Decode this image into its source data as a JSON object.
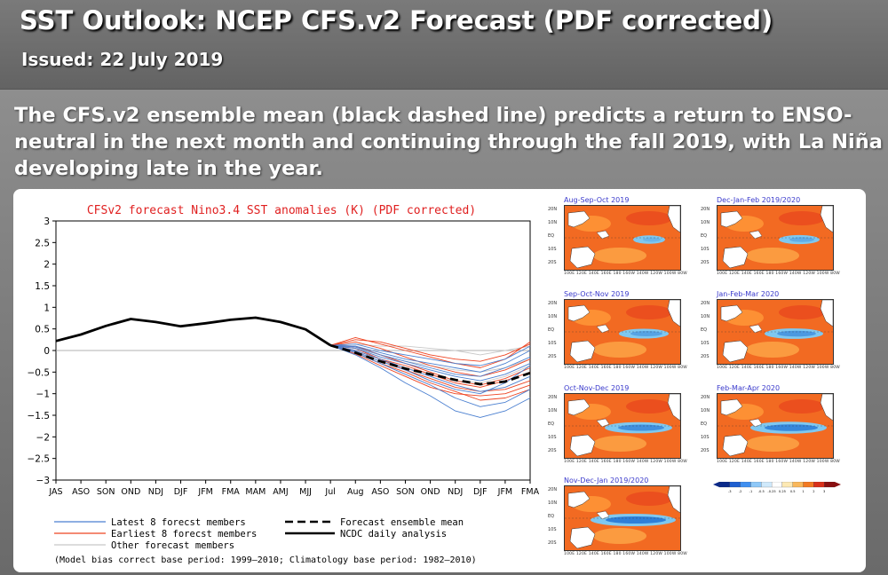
{
  "header": {
    "title": "SST Outlook: NCEP CFS.v2 Forecast (PDF corrected)",
    "issued": "Issued: 22 July 2019"
  },
  "summary": "The CFS.v2 ensemble mean (black dashed line) predicts a return to ENSO-neutral in the next month and continuing through the fall 2019, with La Niña developing late in the year.",
  "colors": {
    "chart_title": "#e02020",
    "latest_members": "#4a7fd0",
    "earliest_members": "#ee4422",
    "other_members": "#c8c8c8",
    "ensemble_mean": "#000000",
    "observed": "#000000"
  },
  "chart_data": {
    "type": "line",
    "title": "CFSv2 forecast Nino3.4 SST anomalies (K) (PDF corrected)",
    "xlabel": "",
    "ylabel": "",
    "ylim": [
      -3,
      3
    ],
    "yticks": [
      "3",
      "2.5",
      "2",
      "1.5",
      "1",
      "0.5",
      "0",
      "−0.5",
      "−1",
      "−1.5",
      "−2",
      "−2.5",
      "−3"
    ],
    "categories": [
      "JAS",
      "ASO",
      "SON",
      "OND",
      "NDJ",
      "DJF",
      "JFM",
      "FMA",
      "MAM",
      "AMJ",
      "MJJ",
      "Jul",
      "Aug",
      "ASO",
      "SON",
      "OND",
      "NDJ",
      "DJF",
      "JFM",
      "FMA"
    ],
    "series": [
      {
        "name": "NCDC daily analysis",
        "x": [
          0,
          1,
          2,
          3,
          4,
          5,
          6,
          7,
          8,
          9,
          10,
          11
        ],
        "values": [
          0.22,
          0.37,
          0.57,
          0.73,
          0.66,
          0.56,
          0.63,
          0.71,
          0.76,
          0.66,
          0.49,
          0.12
        ]
      },
      {
        "name": "Forecast ensemble mean",
        "x": [
          11,
          12,
          13,
          14,
          15,
          16,
          17,
          18,
          19
        ],
        "values": [
          0.12,
          -0.05,
          -0.25,
          -0.42,
          -0.55,
          -0.68,
          -0.78,
          -0.72,
          -0.52
        ]
      },
      {
        "name": "Latest member 1",
        "x": [
          11,
          12,
          13,
          14,
          15,
          16,
          17,
          18,
          19
        ],
        "values": [
          0.12,
          -0.1,
          -0.4,
          -0.75,
          -1.05,
          -1.4,
          -1.55,
          -1.4,
          -1.1
        ]
      },
      {
        "name": "Latest member 2",
        "x": [
          11,
          12,
          13,
          14,
          15,
          16,
          17,
          18,
          19
        ],
        "values": [
          0.12,
          -0.05,
          -0.3,
          -0.55,
          -0.8,
          -1.1,
          -1.3,
          -1.2,
          -0.9
        ]
      },
      {
        "name": "Latest member 3",
        "x": [
          11,
          12,
          13,
          14,
          15,
          16,
          17,
          18,
          19
        ],
        "values": [
          0.12,
          0.0,
          -0.2,
          -0.4,
          -0.6,
          -0.8,
          -0.95,
          -0.85,
          -0.6
        ]
      },
      {
        "name": "Latest member 4",
        "x": [
          11,
          12,
          13,
          14,
          15,
          16,
          17,
          18,
          19
        ],
        "values": [
          0.12,
          0.05,
          -0.15,
          -0.3,
          -0.45,
          -0.6,
          -0.7,
          -0.55,
          -0.3
        ]
      },
      {
        "name": "Latest member 5",
        "x": [
          11,
          12,
          13,
          14,
          15,
          16,
          17,
          18,
          19
        ],
        "values": [
          0.12,
          0.1,
          -0.05,
          -0.2,
          -0.3,
          -0.4,
          -0.5,
          -0.3,
          0.0
        ]
      },
      {
        "name": "Latest member 6",
        "x": [
          11,
          12,
          13,
          14,
          15,
          16,
          17,
          18,
          19
        ],
        "values": [
          0.12,
          -0.02,
          -0.25,
          -0.45,
          -0.7,
          -0.9,
          -1.0,
          -0.75,
          -0.35
        ]
      },
      {
        "name": "Latest member 7",
        "x": [
          11,
          12,
          13,
          14,
          15,
          16,
          17,
          18,
          19
        ],
        "values": [
          0.12,
          0.08,
          -0.1,
          -0.25,
          -0.4,
          -0.55,
          -0.6,
          -0.4,
          -0.15
        ]
      },
      {
        "name": "Latest member 8",
        "x": [
          11,
          12,
          13,
          14,
          15,
          16,
          17,
          18,
          19
        ],
        "values": [
          0.12,
          0.15,
          0.0,
          -0.1,
          -0.2,
          -0.3,
          -0.35,
          -0.2,
          0.1
        ]
      },
      {
        "name": "Earliest member 1",
        "x": [
          11,
          12,
          13,
          14,
          15,
          16,
          17,
          18,
          19
        ],
        "values": [
          0.12,
          0.3,
          0.15,
          0.0,
          -0.15,
          -0.3,
          -0.4,
          -0.2,
          0.2
        ]
      },
      {
        "name": "Earliest member 2",
        "x": [
          11,
          12,
          13,
          14,
          15,
          16,
          17,
          18,
          19
        ],
        "values": [
          0.12,
          0.2,
          0.05,
          -0.15,
          -0.35,
          -0.5,
          -0.6,
          -0.45,
          -0.2
        ]
      },
      {
        "name": "Earliest member 3",
        "x": [
          11,
          12,
          13,
          14,
          15,
          16,
          17,
          18,
          19
        ],
        "values": [
          0.12,
          0.0,
          -0.2,
          -0.45,
          -0.65,
          -0.85,
          -0.95,
          -0.9,
          -0.7
        ]
      },
      {
        "name": "Earliest member 4",
        "x": [
          11,
          12,
          13,
          14,
          15,
          16,
          17,
          18,
          19
        ],
        "values": [
          0.12,
          -0.08,
          -0.35,
          -0.6,
          -0.85,
          -1.0,
          -1.05,
          -1.0,
          -0.8
        ]
      },
      {
        "name": "Earliest member 5",
        "x": [
          11,
          12,
          13,
          14,
          15,
          16,
          17,
          18,
          19
        ],
        "values": [
          0.12,
          0.1,
          -0.1,
          -0.3,
          -0.5,
          -0.7,
          -0.8,
          -0.65,
          -0.4
        ]
      },
      {
        "name": "Earliest member 6",
        "x": [
          11,
          12,
          13,
          14,
          15,
          16,
          17,
          18,
          19
        ],
        "values": [
          0.12,
          0.25,
          0.2,
          0.05,
          -0.1,
          -0.2,
          -0.25,
          -0.1,
          0.15
        ]
      },
      {
        "name": "Earliest member 7",
        "x": [
          11,
          12,
          13,
          14,
          15,
          16,
          17,
          18,
          19
        ],
        "values": [
          0.12,
          -0.05,
          -0.3,
          -0.5,
          -0.75,
          -0.95,
          -1.15,
          -1.1,
          -0.9
        ]
      },
      {
        "name": "Earliest member 8",
        "x": [
          11,
          12,
          13,
          14,
          15,
          16,
          17,
          18,
          19
        ],
        "values": [
          0.12,
          0.05,
          -0.2,
          -0.35,
          -0.55,
          -0.75,
          -0.85,
          -0.7,
          -0.5
        ]
      },
      {
        "name": "Other member 1",
        "x": [
          11,
          12,
          13,
          14,
          15,
          16,
          17,
          18,
          19
        ],
        "values": [
          0.12,
          0.15,
          0.1,
          0.1,
          0.05,
          0.0,
          -0.1,
          0.0,
          0.1
        ]
      },
      {
        "name": "Other member 2",
        "x": [
          11,
          12,
          13,
          14,
          15,
          16,
          17,
          18,
          19
        ],
        "values": [
          0.12,
          0.05,
          -0.1,
          -0.25,
          -0.35,
          -0.45,
          -0.5,
          -0.4,
          -0.2
        ]
      },
      {
        "name": "Other member 3",
        "x": [
          11,
          12,
          13,
          14,
          15,
          16,
          17,
          18,
          19
        ],
        "values": [
          0.12,
          -0.05,
          -0.25,
          -0.4,
          -0.55,
          -0.7,
          -0.75,
          -0.6,
          -0.35
        ]
      }
    ],
    "legend": {
      "latest": "Latest 8 forecst members",
      "earliest": "Earliest 8 forecst members",
      "other": "Other forecast members",
      "mean": "Forecast ensemble mean",
      "observed": "NCDC daily analysis",
      "footnote": "(Model bias correct base period: 1999–2010; Climatology base period: 1982–2010)"
    }
  },
  "maps": [
    {
      "title": "Aug-Sep-Oct 2019"
    },
    {
      "title": "Dec-Jan-Feb 2019/2020"
    },
    {
      "title": "Sep-Oct-Nov 2019"
    },
    {
      "title": "Jan-Feb-Mar 2020"
    },
    {
      "title": "Oct-Nov-Dec 2019"
    },
    {
      "title": "Feb-Mar-Apr 2020"
    },
    {
      "title": "Nov-Dec-Jan 2019/2020"
    }
  ],
  "map_lat_labels": [
    "20N",
    "10N",
    "EQ",
    "10S",
    "20S"
  ],
  "map_lon_labels": "100E 120E 140E 160E 180 160W 140W 120W 100W 80W",
  "colorbar_ticks": [
    "-3",
    "-2",
    "-1",
    "-0.5",
    "-0.25",
    "0.25",
    "0.5",
    "1",
    "2",
    "3"
  ]
}
